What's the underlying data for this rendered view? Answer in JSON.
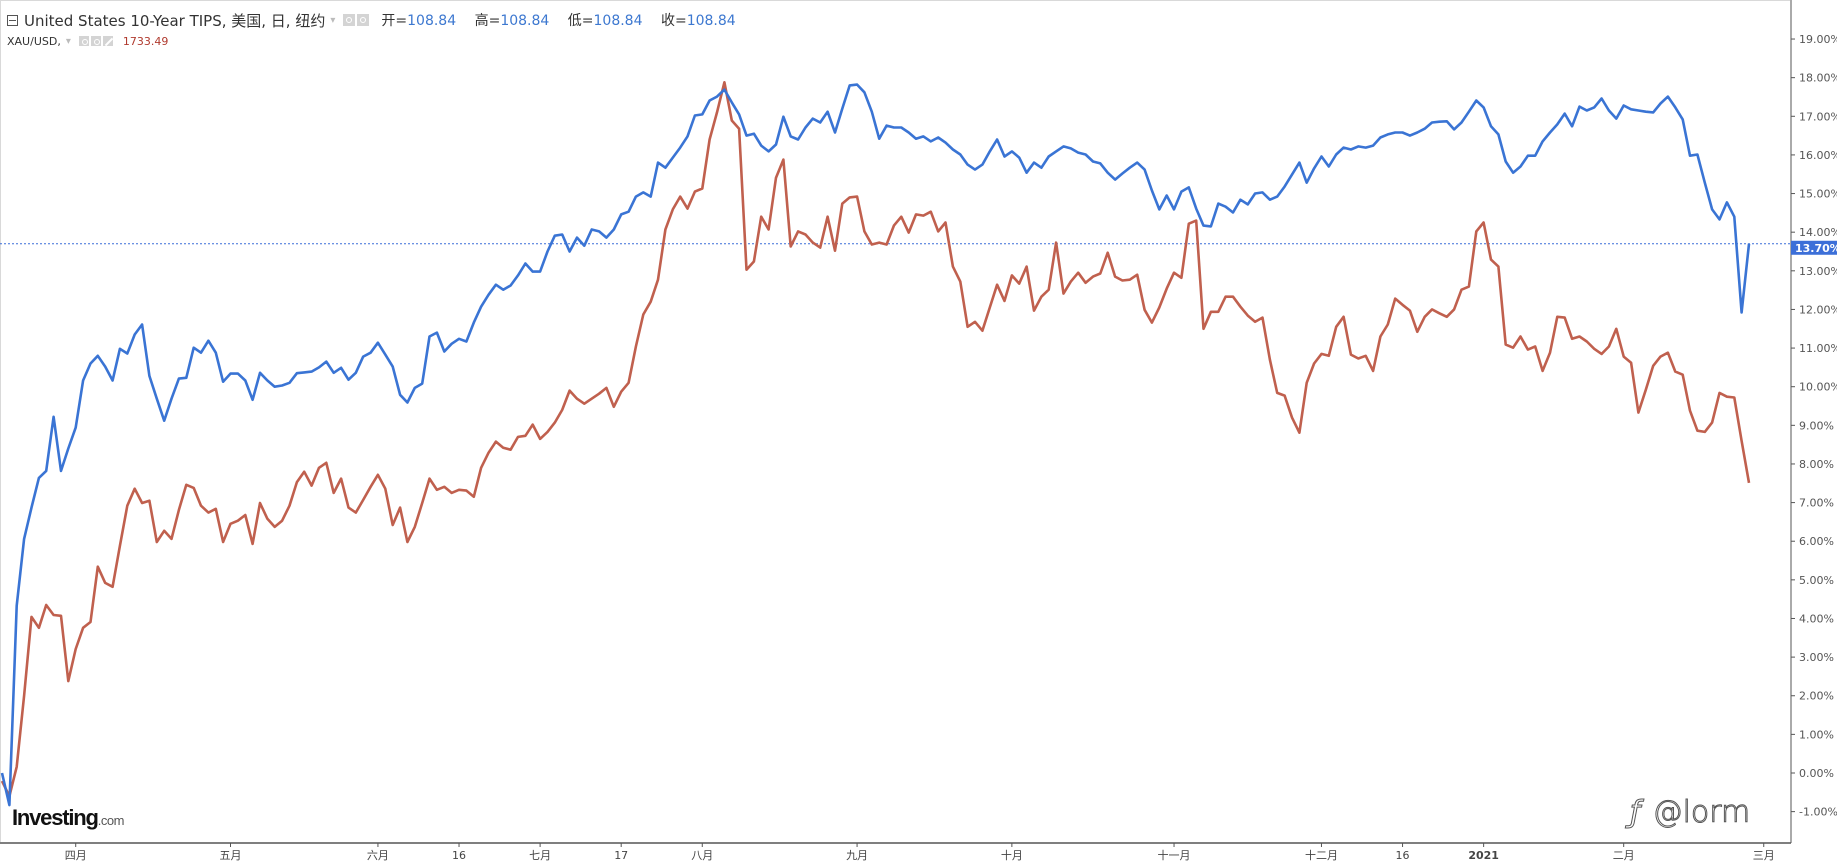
{
  "legend": {
    "main_title": "United States 10-Year TIPS, 美国, 日, 纽约",
    "ohlc": [
      {
        "label": "开=",
        "value": "108.84"
      },
      {
        "label": "高=",
        "value": "108.84"
      },
      {
        "label": "低=",
        "value": "108.84"
      },
      {
        "label": "收=",
        "value": "108.84"
      }
    ],
    "compare_symbol": "XAU/USD,",
    "compare_price": "1733.49"
  },
  "logo": {
    "brand": "Investing",
    "domain": ".com"
  },
  "watermark": {
    "text": "@lorm"
  },
  "colors": {
    "tips": "#3a74d4",
    "gold": "#c0604e",
    "current_label_bg": "#3c6fd8",
    "axis": "#555555"
  },
  "chart_data": {
    "type": "line",
    "ylim": [
      -1,
      19.6
    ],
    "y_unit": "%",
    "y_ticks": [
      -1,
      0,
      1,
      2,
      3,
      4,
      5,
      6,
      7,
      8,
      9,
      10,
      11,
      12,
      13,
      14,
      15,
      16,
      17,
      18,
      19
    ],
    "y_tick_labels": [
      "-1.00%",
      "0.00%",
      "1.00%",
      "2.00%",
      "3.00%",
      "4.00%",
      "5.00%",
      "6.00%",
      "7.00%",
      "8.00%",
      "9.00%",
      "10.00%",
      "11.00%",
      "12.00%",
      "13.00%",
      "14.00%",
      "15.00%",
      "16.00%",
      "17.00%",
      "18.00%",
      "19.00%"
    ],
    "x_ticks": [
      {
        "label": "四月",
        "date": "2020-04-01"
      },
      {
        "label": "五月",
        "date": "2020-05-01"
      },
      {
        "label": "六月",
        "date": "2020-06-01"
      },
      {
        "label": "16",
        "date": "2020-06-16"
      },
      {
        "label": "七月",
        "date": "2020-07-01"
      },
      {
        "label": "17",
        "date": "2020-07-17"
      },
      {
        "label": "八月",
        "date": "2020-08-03"
      },
      {
        "label": "九月",
        "date": "2020-09-01"
      },
      {
        "label": "十月",
        "date": "2020-10-01"
      },
      {
        "label": "十一月",
        "date": "2020-11-02"
      },
      {
        "label": "十二月",
        "date": "2020-12-01"
      },
      {
        "label": "16",
        "date": "2020-12-16"
      },
      {
        "label": "2021",
        "date": "2021-01-04",
        "bold": true
      },
      {
        "label": "二月",
        "date": "2021-02-01"
      },
      {
        "label": "三月",
        "date": "2021-03-01"
      }
    ],
    "current_value": 13.7,
    "current_value_label": "13.70%",
    "x": [
      "2020-03-18",
      "2020-03-19",
      "2020-03-20",
      "2020-03-23",
      "2020-03-24",
      "2020-03-25",
      "2020-03-26",
      "2020-03-27",
      "2020-03-30",
      "2020-03-31",
      "2020-04-01",
      "2020-04-02",
      "2020-04-03",
      "2020-04-06",
      "2020-04-07",
      "2020-04-08",
      "2020-04-09",
      "2020-04-13",
      "2020-04-14",
      "2020-04-15",
      "2020-04-16",
      "2020-04-17",
      "2020-04-20",
      "2020-04-21",
      "2020-04-22",
      "2020-04-23",
      "2020-04-24",
      "2020-04-27",
      "2020-04-28",
      "2020-04-29",
      "2020-04-30",
      "2020-05-01",
      "2020-05-04",
      "2020-05-05",
      "2020-05-06",
      "2020-05-07",
      "2020-05-08",
      "2020-05-11",
      "2020-05-12",
      "2020-05-13",
      "2020-05-14",
      "2020-05-15",
      "2020-05-18",
      "2020-05-19",
      "2020-05-20",
      "2020-05-21",
      "2020-05-22",
      "2020-05-26",
      "2020-05-27",
      "2020-05-28",
      "2020-05-29",
      "2020-06-01",
      "2020-06-02",
      "2020-06-03",
      "2020-06-04",
      "2020-06-05",
      "2020-06-08",
      "2020-06-09",
      "2020-06-10",
      "2020-06-11",
      "2020-06-12",
      "2020-06-15",
      "2020-06-16",
      "2020-06-17",
      "2020-06-18",
      "2020-06-19",
      "2020-06-22",
      "2020-06-23",
      "2020-06-24",
      "2020-06-25",
      "2020-06-26",
      "2020-06-29",
      "2020-06-30",
      "2020-07-01",
      "2020-07-02",
      "2020-07-06",
      "2020-07-07",
      "2020-07-08",
      "2020-07-09",
      "2020-07-10",
      "2020-07-13",
      "2020-07-14",
      "2020-07-15",
      "2020-07-16",
      "2020-07-17",
      "2020-07-20",
      "2020-07-21",
      "2020-07-22",
      "2020-07-23",
      "2020-07-24",
      "2020-07-27",
      "2020-07-28",
      "2020-07-29",
      "2020-07-30",
      "2020-07-31",
      "2020-08-03",
      "2020-08-04",
      "2020-08-05",
      "2020-08-06",
      "2020-08-07",
      "2020-08-10",
      "2020-08-11",
      "2020-08-12",
      "2020-08-13",
      "2020-08-14",
      "2020-08-17",
      "2020-08-18",
      "2020-08-19",
      "2020-08-20",
      "2020-08-21",
      "2020-08-24",
      "2020-08-25",
      "2020-08-26",
      "2020-08-27",
      "2020-08-28",
      "2020-08-31",
      "2020-09-01",
      "2020-09-02",
      "2020-09-03",
      "2020-09-04",
      "2020-09-08",
      "2020-09-09",
      "2020-09-10",
      "2020-09-11",
      "2020-09-14",
      "2020-09-15",
      "2020-09-16",
      "2020-09-17",
      "2020-09-18",
      "2020-09-21",
      "2020-09-22",
      "2020-09-23",
      "2020-09-24",
      "2020-09-25",
      "2020-09-28",
      "2020-09-29",
      "2020-09-30",
      "2020-10-01",
      "2020-10-02",
      "2020-10-05",
      "2020-10-06",
      "2020-10-07",
      "2020-10-08",
      "2020-10-09",
      "2020-10-12",
      "2020-10-13",
      "2020-10-14",
      "2020-10-15",
      "2020-10-16",
      "2020-10-19",
      "2020-10-20",
      "2020-10-21",
      "2020-10-22",
      "2020-10-23",
      "2020-10-26",
      "2020-10-27",
      "2020-10-28",
      "2020-10-29",
      "2020-10-30",
      "2020-11-02",
      "2020-11-03",
      "2020-11-04",
      "2020-11-05",
      "2020-11-06",
      "2020-11-09",
      "2020-11-10",
      "2020-11-11",
      "2020-11-12",
      "2020-11-13",
      "2020-11-16",
      "2020-11-17",
      "2020-11-18",
      "2020-11-19",
      "2020-11-20",
      "2020-11-23",
      "2020-11-24",
      "2020-11-25",
      "2020-11-27",
      "2020-11-30",
      "2020-12-01",
      "2020-12-02",
      "2020-12-03",
      "2020-12-04",
      "2020-12-07",
      "2020-12-08",
      "2020-12-09",
      "2020-12-10",
      "2020-12-11",
      "2020-12-14",
      "2020-12-15",
      "2020-12-16",
      "2020-12-17",
      "2020-12-18",
      "2020-12-21",
      "2020-12-22",
      "2020-12-23",
      "2020-12-24",
      "2020-12-28",
      "2020-12-29",
      "2020-12-30",
      "2020-12-31",
      "2021-01-04",
      "2021-01-05",
      "2021-01-06",
      "2021-01-07",
      "2021-01-08",
      "2021-01-11",
      "2021-01-12",
      "2021-01-13",
      "2021-01-14",
      "2021-01-15",
      "2021-01-19",
      "2021-01-20",
      "2021-01-21",
      "2021-01-22",
      "2021-01-25",
      "2021-01-26",
      "2021-01-27",
      "2021-01-28",
      "2021-01-29",
      "2021-02-01",
      "2021-02-02",
      "2021-02-03",
      "2021-02-04",
      "2021-02-05",
      "2021-02-08",
      "2021-02-09",
      "2021-02-10",
      "2021-02-11",
      "2021-02-12",
      "2021-02-16",
      "2021-02-17",
      "2021-02-18",
      "2021-02-19",
      "2021-02-22",
      "2021-02-23",
      "2021-02-24",
      "2021-02-25"
    ],
    "series": [
      {
        "name": "United States 10-Year TIPS",
        "color": "#3a74d4",
        "values": [
          0.0,
          -0.83,
          4.33,
          6.06,
          6.87,
          7.64,
          7.82,
          9.22,
          7.82,
          8.4,
          8.94,
          10.16,
          10.6,
          10.8,
          10.52,
          10.16,
          10.98,
          10.86,
          11.35,
          11.61,
          10.28,
          9.69,
          9.12,
          9.69,
          10.21,
          10.23,
          11.01,
          10.88,
          11.19,
          10.88,
          10.13,
          10.34,
          10.34,
          10.16,
          9.66,
          10.36,
          10.16,
          10.0,
          10.03,
          10.1,
          10.35,
          10.37,
          10.39,
          10.5,
          10.65,
          10.36,
          10.49,
          10.18,
          10.36,
          10.78,
          10.88,
          11.14,
          10.83,
          10.52,
          9.79,
          9.59,
          9.97,
          10.08,
          11.3,
          11.4,
          10.91,
          11.11,
          11.24,
          11.17,
          11.66,
          12.07,
          12.38,
          12.64,
          12.51,
          12.62,
          12.88,
          13.19,
          12.98,
          12.98,
          13.5,
          13.91,
          13.94,
          13.5,
          13.86,
          13.65,
          14.07,
          14.02,
          13.86,
          14.07,
          14.46,
          14.53,
          14.92,
          15.03,
          14.92,
          15.8,
          15.67,
          15.93,
          16.19,
          16.48,
          17.02,
          17.05,
          17.41,
          17.51,
          17.69,
          17.36,
          17.05,
          16.5,
          16.55,
          16.24,
          16.09,
          16.27,
          16.99,
          16.48,
          16.4,
          16.71,
          16.94,
          16.84,
          17.12,
          16.58,
          17.2,
          17.8,
          17.82,
          17.62,
          17.12,
          16.42,
          16.76,
          16.71,
          16.71,
          16.58,
          16.42,
          16.48,
          16.35,
          16.45,
          16.32,
          16.14,
          16.01,
          15.75,
          15.62,
          15.75,
          16.09,
          16.4,
          15.96,
          16.09,
          15.93,
          15.54,
          15.8,
          15.67,
          15.96,
          16.09,
          16.22,
          16.17,
          16.06,
          16.01,
          15.83,
          15.78,
          15.54,
          15.36,
          15.52,
          15.67,
          15.8,
          15.62,
          15.08,
          14.59,
          14.95,
          14.59,
          15.05,
          15.16,
          14.61,
          14.17,
          14.15,
          14.74,
          14.66,
          14.51,
          14.84,
          14.72,
          15.0,
          15.03,
          14.84,
          14.92,
          15.18,
          15.49,
          15.8,
          15.28,
          15.65,
          15.96,
          15.7,
          16.01,
          16.19,
          16.14,
          16.22,
          16.19,
          16.24,
          16.45,
          16.53,
          16.58,
          16.58,
          16.5,
          16.58,
          16.68,
          16.84,
          16.86,
          16.87,
          16.66,
          16.84,
          17.12,
          17.41,
          17.23,
          16.74,
          16.53,
          15.83,
          15.54,
          15.7,
          15.98,
          15.98,
          16.35,
          16.58,
          16.79,
          17.07,
          16.74,
          17.25,
          17.15,
          17.23,
          17.46,
          17.15,
          16.94,
          17.28,
          17.18,
          17.15,
          17.12,
          17.1,
          17.33,
          17.51,
          17.23,
          16.92,
          15.98,
          16.01,
          15.28,
          14.59,
          14.33,
          14.77,
          14.4,
          11.92,
          13.7
        ]
      },
      {
        "name": "XAU/USD",
        "color": "#c0604e",
        "values": [
          -0.21,
          -0.6,
          0.16,
          2.0,
          4.04,
          3.76,
          4.35,
          4.09,
          4.07,
          2.38,
          3.21,
          3.76,
          3.91,
          5.34,
          4.92,
          4.82,
          5.88,
          6.92,
          7.36,
          6.99,
          7.05,
          5.98,
          6.27,
          6.06,
          6.81,
          7.46,
          7.38,
          6.92,
          6.74,
          6.84,
          5.98,
          6.45,
          6.53,
          6.68,
          5.93,
          6.99,
          6.58,
          6.37,
          6.53,
          6.92,
          7.53,
          7.8,
          7.44,
          7.9,
          8.03,
          7.25,
          7.62,
          6.87,
          6.74,
          7.07,
          7.41,
          7.72,
          7.36,
          6.42,
          6.87,
          5.98,
          6.37,
          6.99,
          7.62,
          7.33,
          7.41,
          7.25,
          7.33,
          7.31,
          7.15,
          7.9,
          8.29,
          8.58,
          8.42,
          8.37,
          8.7,
          8.73,
          9.02,
          8.65,
          8.83,
          9.07,
          9.4,
          9.9,
          9.69,
          9.56,
          9.69,
          9.82,
          9.97,
          9.48,
          9.87,
          10.1,
          11.04,
          11.87,
          12.2,
          12.77,
          14.07,
          14.59,
          14.92,
          14.61,
          15.05,
          15.13,
          16.4,
          17.1,
          17.88,
          16.89,
          16.68,
          13.03,
          13.24,
          14.4,
          14.07,
          15.41,
          15.88,
          13.63,
          14.02,
          13.94,
          13.73,
          13.6,
          14.4,
          13.52,
          14.74,
          14.9,
          14.92,
          14.02,
          13.68,
          13.73,
          13.68,
          14.17,
          14.4,
          13.99,
          14.46,
          14.43,
          14.53,
          14.02,
          14.25,
          13.11,
          12.72,
          11.55,
          11.68,
          11.45,
          12.05,
          12.64,
          12.22,
          12.88,
          12.67,
          13.11,
          11.97,
          12.33,
          12.51,
          13.73,
          12.41,
          12.72,
          12.95,
          12.69,
          12.85,
          12.93,
          13.47,
          12.85,
          12.75,
          12.77,
          12.9,
          11.99,
          11.66,
          12.05,
          12.54,
          12.95,
          12.82,
          14.22,
          14.3,
          11.5,
          11.94,
          11.94,
          12.33,
          12.33,
          12.07,
          11.84,
          11.68,
          11.79,
          10.7,
          9.84,
          9.77,
          9.2,
          8.81,
          10.1,
          10.6,
          10.85,
          10.8,
          11.55,
          11.81,
          10.83,
          10.73,
          10.8,
          10.41,
          11.3,
          11.61,
          12.28,
          12.12,
          11.97,
          11.42,
          11.81,
          12.0,
          11.9,
          11.81,
          12.0,
          12.51,
          12.59,
          14.02,
          14.25,
          13.29,
          13.11,
          11.09,
          11.01,
          11.3,
          10.96,
          11.04,
          10.41,
          10.88,
          11.81,
          11.79,
          11.24,
          11.3,
          11.17,
          10.98,
          10.85,
          11.04,
          11.5,
          10.78,
          10.62,
          9.33,
          9.92,
          10.54,
          10.78,
          10.88,
          10.39,
          10.31,
          9.38,
          8.86,
          8.83,
          9.07,
          9.84,
          9.74,
          9.72,
          8.6,
          7.51
        ]
      }
    ]
  }
}
